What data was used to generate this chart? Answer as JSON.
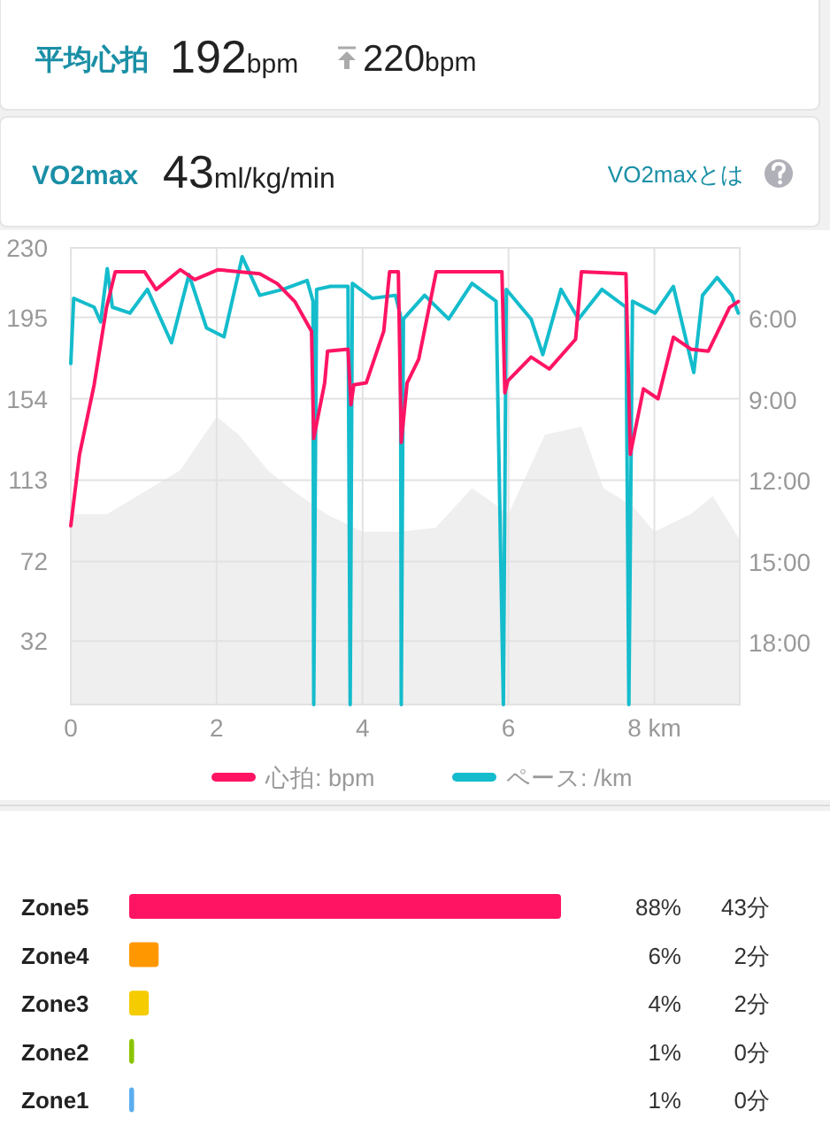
{
  "chart_data": [
    {
      "type": "other",
      "title": "平均心拍",
      "annotations": [
        "192",
        "bpm",
        "220",
        "bpm"
      ]
    },
    {
      "type": "other",
      "title": "VO2max",
      "annotations": [
        "43",
        "ml/kg/min",
        "VO2maxとは"
      ]
    },
    {
      "type": "line",
      "xlim": [
        0,
        9.17
      ],
      "xticks": [
        0,
        2,
        4,
        6,
        {
          "value": 8,
          "label": "8 km"
        }
      ],
      "ylim": [
        0,
        230
      ],
      "yticks": [
        32,
        72,
        113,
        154,
        195,
        230
      ],
      "y2lim": [
        20.3,
        3.36
      ],
      "y2ticks": [
        {
          "value": 6,
          "label": "6:00"
        },
        {
          "value": 9,
          "label": "9:00"
        },
        {
          "value": 12,
          "label": "12:00"
        },
        {
          "value": 15,
          "label": "15:00"
        },
        {
          "value": 18,
          "label": "18:00"
        }
      ],
      "grid": true,
      "legend": "bottom",
      "series": [
        {
          "type": "area",
          "color": "#efefef",
          "x": [
            0,
            0.5,
            1.0,
            1.5,
            2.0,
            2.3,
            2.7,
            3.0,
            3.5,
            4.0,
            4.5,
            5.0,
            5.5,
            6.0,
            6.5,
            7.0,
            7.3,
            7.7,
            8.0,
            8.5,
            8.8,
            9.17
          ],
          "values": [
            96,
            96,
            107,
            118,
            145,
            136,
            118,
            109,
            96,
            87,
            87,
            89,
            109,
            96,
            136,
            140,
            109,
            100,
            87,
            96,
            105,
            83
          ]
        },
        {
          "name": "心拍: bpm",
          "color": "#ff1464",
          "x": [
            0,
            0.12,
            0.32,
            0.49,
            0.61,
            1.01,
            1.17,
            1.5,
            1.7,
            2.02,
            2.59,
            2.83,
            3.07,
            3.3,
            3.33,
            3.48,
            3.52,
            3.8,
            3.84,
            3.88,
            4.05,
            4.29,
            4.37,
            4.49,
            4.53,
            4.61,
            4.77,
            5.01,
            5.91,
            5.95,
            5.99,
            6.31,
            6.56,
            6.92,
            7.0,
            7.61,
            7.67,
            7.85,
            8.05,
            8.26,
            8.5,
            8.74,
            9.03,
            9.15
          ],
          "values": [
            90,
            126,
            161,
            200,
            218,
            218,
            209,
            219,
            214,
            219,
            217,
            212,
            203,
            188,
            134,
            162,
            178,
            179,
            151,
            161,
            162,
            188,
            218,
            218,
            132,
            162,
            174,
            218,
            218,
            157,
            163,
            175,
            169,
            184,
            218,
            217,
            126,
            159,
            154,
            185,
            179,
            178,
            200,
            203
          ]
        },
        {
          "name": "ペース: /km",
          "axis": "y2",
          "color": "#14bccc",
          "x": [
            0,
            0.04,
            0.32,
            0.41,
            0.5,
            0.57,
            0.81,
            1.05,
            1.38,
            1.62,
            1.86,
            2.1,
            2.35,
            2.59,
            2.91,
            3.24,
            3.32,
            3.33,
            3.37,
            3.56,
            3.8,
            3.83,
            3.86,
            4.13,
            4.45,
            4.52,
            4.53,
            4.56,
            4.85,
            5.18,
            5.5,
            5.83,
            5.93,
            5.97,
            6.31,
            6.47,
            6.72,
            6.96,
            7.28,
            7.61,
            7.65,
            7.7,
            8.01,
            8.26,
            8.54,
            8.66,
            8.86,
            9.06,
            9.15
          ],
          "values": [
            7.65,
            5.23,
            5.56,
            6.11,
            4.13,
            5.56,
            5.78,
            4.9,
            6.88,
            4.35,
            6.33,
            6.66,
            3.69,
            5.12,
            4.9,
            4.57,
            5.34,
            20.3,
            4.9,
            4.79,
            4.79,
            20.3,
            4.68,
            5.23,
            5.12,
            5.89,
            20.3,
            6.0,
            5.12,
            6.0,
            4.68,
            5.34,
            20.3,
            4.9,
            6.0,
            7.32,
            4.9,
            6.0,
            4.9,
            5.56,
            20.3,
            5.34,
            5.78,
            4.79,
            7.98,
            5.12,
            4.46,
            5.12,
            5.78
          ]
        }
      ]
    },
    {
      "type": "bar",
      "orientation": "horizontal",
      "categories": [
        "Zone5",
        "Zone4",
        "Zone3",
        "Zone2",
        "Zone1"
      ],
      "values": [
        88,
        6,
        4,
        1,
        1
      ],
      "colors": [
        "#ff1464",
        "#ff9800",
        "#f5cc00",
        "#8bc400",
        "#5aaef0"
      ],
      "value_labels": [
        "88%",
        "6%",
        "4%",
        "1%",
        "1%"
      ],
      "annotations": [
        "43分",
        "2分",
        "2分",
        "0分",
        "0分"
      ]
    }
  ]
}
